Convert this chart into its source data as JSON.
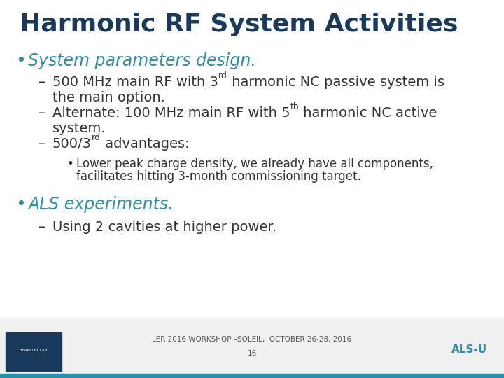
{
  "title": "Harmonic RF System Activities",
  "title_color": "#1a3a5c",
  "title_fontsize": 26,
  "bg_color": "#ffffff",
  "bullet1_color": "#2e8fa3",
  "bullet1_text": "System parameters design.",
  "bullet1_fontsize": 17,
  "text_color": "#333333",
  "dash_fontsize": 14,
  "sub_bullet_fontsize": 12,
  "bullet2_color": "#2e8fa3",
  "bullet2_text": "ALS experiments.",
  "bullet2_fontsize": 17,
  "dash4_text": "Using 2 cavities at higher power.",
  "footer_text": "LER 2016 WORKSHOP –SOLEIL,  OCTOBER 26-28, 2016",
  "footer_page": "16",
  "footer_bar_color": "#2e8fa3",
  "footer_text_color": "#555555",
  "footer_bar_height": 0.004
}
